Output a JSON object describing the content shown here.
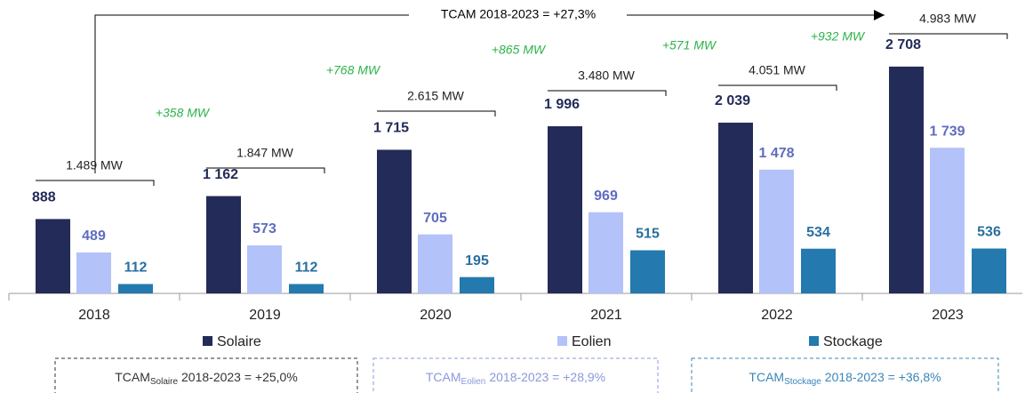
{
  "chart_data": {
    "type": "bar",
    "categories": [
      "2018",
      "2019",
      "2020",
      "2021",
      "2022",
      "2023"
    ],
    "series": [
      {
        "name": "Solaire",
        "color": "#232b58",
        "label_color": "#232b58",
        "values": [
          888,
          1162,
          1715,
          1996,
          2039,
          2708
        ],
        "value_labels": [
          "888",
          "1 162",
          "1 715",
          "1 996",
          "2 039",
          "2 708"
        ]
      },
      {
        "name": "Eolien",
        "color": "#b3c2f9",
        "label_color": "#5f6cc0",
        "values": [
          489,
          573,
          705,
          969,
          1478,
          1739
        ],
        "value_labels": [
          "489",
          "573",
          "705",
          "969",
          "1 478",
          "1 739"
        ]
      },
      {
        "name": "Stockage",
        "color": "#2479ae",
        "label_color": "#286f9f",
        "values": [
          112,
          112,
          195,
          515,
          534,
          536
        ],
        "value_labels": [
          "112",
          "112",
          "195",
          "515",
          "534",
          "536"
        ]
      }
    ],
    "totals": [
      "1.489 MW",
      "1.847 MW",
      "2.615 MW",
      "3.480 MW",
      "4.051 MW",
      "4.983 MW"
    ],
    "increments": [
      "+358 MW",
      "+768 MW",
      "+865 MW",
      "+571 MW",
      "+932 MW"
    ],
    "cagr_total": "TCAM 2018-2023 = +27,3%",
    "cagr_boxes": [
      {
        "label": "TCAM",
        "subscript": "Solaire",
        "text": "2018-2023 = +25,0%",
        "color": "#333333"
      },
      {
        "label": "TCAM",
        "subscript": "Eolien",
        "text": "2018-2023 = +28,9%",
        "color": "#8a98dc"
      },
      {
        "label": "TCAM",
        "subscript": "Stockage",
        "text": "2018-2023 = +36,8%",
        "color": "#3a86b8"
      }
    ]
  }
}
